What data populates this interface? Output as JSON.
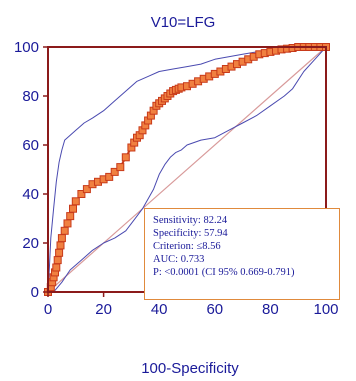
{
  "chart_data": {
    "type": "line",
    "title": "V10=LFG",
    "xlabel": "100-Specificity",
    "ylabel": "",
    "xlim": [
      0,
      100
    ],
    "ylim": [
      0,
      100
    ],
    "x_ticks": [
      "0",
      "20",
      "40",
      "60",
      "80",
      "100"
    ],
    "y_ticks": [
      "0",
      "20",
      "40",
      "60",
      "80",
      "100"
    ],
    "grid": false,
    "colors": {
      "roc_line": "#c83a1a",
      "roc_marker_fill": "#f08040",
      "ci_bounds": "#4a4ab0",
      "reference": "#d89a9a",
      "frame": "#8b1a1a",
      "text": "#1a1a99",
      "stats_border": "#e08a3c"
    },
    "series": [
      {
        "role": "roc_curve",
        "x": [
          0,
          1,
          1.5,
          2,
          2.5,
          3,
          3.5,
          4,
          4.5,
          5,
          6,
          7,
          8,
          9,
          10,
          12,
          14,
          16,
          18,
          20,
          22,
          24,
          26,
          28,
          30,
          31,
          32,
          33,
          34,
          35,
          36,
          37,
          38,
          39,
          40,
          41,
          42,
          43,
          44,
          45,
          46,
          47,
          48,
          50,
          52,
          54,
          56,
          58,
          60,
          62,
          64,
          66,
          68,
          70,
          72,
          74,
          76,
          78,
          80,
          82,
          84,
          86,
          88,
          90,
          92,
          94,
          96,
          98,
          100
        ],
        "y": [
          0,
          2,
          4,
          6,
          8,
          10,
          13,
          16,
          19,
          22,
          25,
          28,
          31,
          34,
          37,
          40,
          42,
          44,
          45,
          46,
          47,
          49,
          51,
          55,
          59,
          61,
          63,
          64,
          66,
          68,
          70,
          72,
          74,
          76,
          77,
          78,
          79,
          80,
          81,
          82,
          82.5,
          83,
          83.5,
          84,
          85,
          86,
          87,
          88,
          89,
          90,
          91,
          92,
          93,
          94,
          95,
          96,
          97,
          97.5,
          98,
          98.5,
          99,
          99.3,
          99.6,
          100,
          100,
          100,
          100,
          100,
          100
        ]
      },
      {
        "role": "ci_upper",
        "x": [
          0,
          0.5,
          1,
          2,
          3,
          4,
          5,
          6,
          8,
          10,
          13,
          16,
          20,
          24,
          28,
          32,
          36,
          40,
          45,
          50,
          55,
          60,
          65,
          70,
          75,
          80,
          85,
          90,
          95,
          100
        ],
        "y": [
          0,
          10,
          22,
          34,
          45,
          53,
          58,
          62,
          64,
          66,
          69,
          71,
          74,
          78,
          82,
          86,
          88,
          90,
          91,
          92,
          93,
          95,
          96,
          97,
          98,
          99,
          99.5,
          100,
          100,
          100
        ]
      },
      {
        "role": "ci_lower",
        "x": [
          2,
          5,
          8,
          12,
          16,
          20,
          24,
          28,
          30,
          32,
          34,
          36,
          38,
          40,
          42,
          44,
          46,
          48,
          50,
          55,
          60,
          65,
          70,
          75,
          80,
          85,
          88,
          92,
          96,
          100
        ],
        "y": [
          0,
          4,
          9,
          13,
          17,
          20,
          22,
          25,
          28,
          31,
          34,
          38,
          42,
          48,
          52,
          55,
          57,
          58,
          60,
          62,
          63,
          66,
          69,
          72,
          76,
          80,
          83,
          90,
          95,
          100
        ]
      },
      {
        "role": "reference_diagonal",
        "x": [
          0,
          100
        ],
        "y": [
          0,
          100
        ]
      }
    ],
    "stats": [
      "Sensitivity: 82.24",
      "Specificity: 57.94",
      "Criterion: ≤8.56",
      "AUC: 0.733",
      "P: <0.0001 (CI 95% 0.669-0.791)"
    ]
  }
}
